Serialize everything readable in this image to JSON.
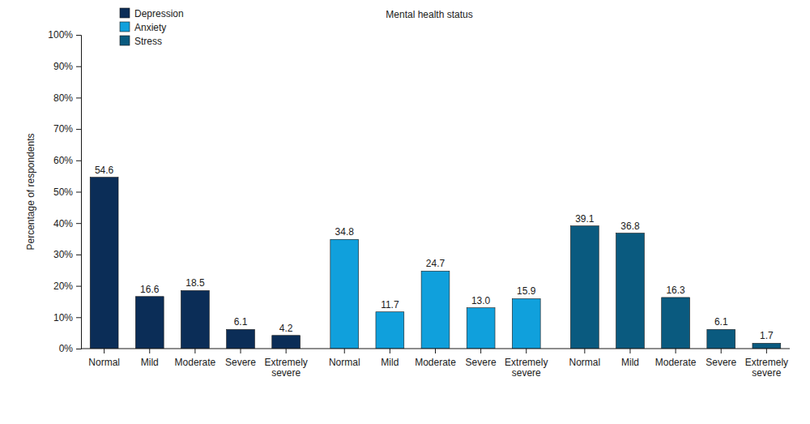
{
  "chart_data": {
    "type": "bar",
    "title": "Mental health status",
    "ylabel": "Percentage of respondents",
    "categories": [
      "Normal",
      "Mild",
      "Moderate",
      "Severe",
      "Extremely severe"
    ],
    "series": [
      {
        "name": "Depression",
        "color": "#0b2d57",
        "values": [
          54.6,
          16.6,
          18.5,
          6.1,
          4.2
        ]
      },
      {
        "name": "Anxiety",
        "color": "#10a0dc",
        "values": [
          34.8,
          11.7,
          24.7,
          13.0,
          15.9
        ],
        "value_labels": [
          "34.8",
          "11.7",
          "24.7",
          "13.0",
          "15.9"
        ]
      },
      {
        "name": "Stress",
        "color": "#0a5a7f",
        "values": [
          39.1,
          36.8,
          16.3,
          6.1,
          1.7
        ]
      }
    ],
    "ylim": [
      0,
      100
    ],
    "yticks": [
      {
        "value": 0,
        "label": "0%"
      },
      {
        "value": 10,
        "label": "10%"
      },
      {
        "value": 20,
        "label": "20%"
      },
      {
        "value": 30,
        "label": "30%"
      },
      {
        "value": 40,
        "label": "40%"
      },
      {
        "value": 50,
        "label": "50%"
      },
      {
        "value": 60,
        "label": "60%"
      },
      {
        "value": 70,
        "label": "70%"
      },
      {
        "value": 80,
        "label": "80%"
      },
      {
        "value": 90,
        "label": "90%"
      },
      {
        "value": 100,
        "label": "100%"
      }
    ],
    "grid": false,
    "legend": "upper left",
    "data_labels": true
  }
}
